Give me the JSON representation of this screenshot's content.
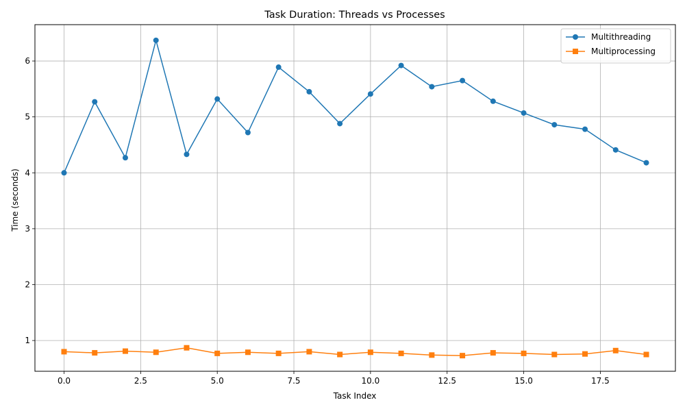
{
  "chart_data": {
    "type": "line",
    "title": "Task Duration: Threads vs Processes",
    "xlabel": "Task Index",
    "ylabel": "Time (seconds)",
    "x": [
      0,
      1,
      2,
      3,
      4,
      5,
      6,
      7,
      8,
      9,
      10,
      11,
      12,
      13,
      14,
      15,
      16,
      17,
      18,
      19
    ],
    "xlim": [
      -0.95,
      19.95
    ],
    "ylim": [
      0.45,
      6.65
    ],
    "xticks": [
      0.0,
      2.5,
      5.0,
      7.5,
      10.0,
      12.5,
      15.0,
      17.5
    ],
    "xtick_labels": [
      "0.0",
      "2.5",
      "5.0",
      "7.5",
      "10.0",
      "12.5",
      "15.0",
      "17.5"
    ],
    "yticks": [
      1,
      2,
      3,
      4,
      5,
      6
    ],
    "ytick_labels": [
      "1",
      "2",
      "3",
      "4",
      "5",
      "6"
    ],
    "grid": true,
    "legend_position": "top-right",
    "series": [
      {
        "name": "Multithreading",
        "color": "#1f77b4",
        "marker": "circle",
        "values": [
          4.0,
          5.27,
          4.27,
          6.37,
          4.33,
          5.32,
          4.72,
          5.89,
          5.45,
          4.88,
          5.41,
          5.92,
          5.54,
          5.65,
          5.28,
          5.07,
          4.86,
          4.78,
          4.41,
          4.18
        ]
      },
      {
        "name": "Multiprocessing",
        "color": "#ff7f0e",
        "marker": "square",
        "values": [
          0.8,
          0.78,
          0.81,
          0.79,
          0.87,
          0.77,
          0.79,
          0.77,
          0.8,
          0.75,
          0.79,
          0.77,
          0.74,
          0.73,
          0.78,
          0.77,
          0.75,
          0.76,
          0.82,
          0.75
        ]
      }
    ]
  }
}
